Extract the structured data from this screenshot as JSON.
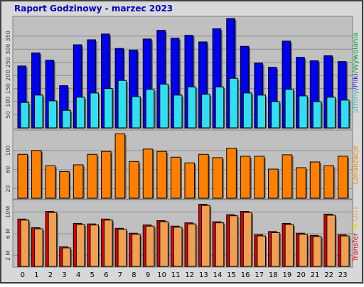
{
  "chart_data": [
    {
      "type": "bar",
      "title": "Raport Godzinowy -  marzec 2023",
      "series": [
        {
          "name": "Pliki",
          "color": "#0000f0",
          "values": [
            236,
            286,
            258,
            161,
            317,
            336,
            358,
            303,
            297,
            339,
            372,
            342,
            353,
            328,
            378,
            417,
            311,
            247,
            231,
            331,
            269,
            256,
            275,
            253
          ]
        },
        {
          "name": "Strony",
          "color": "#30e0f0",
          "values": [
            97,
            125,
            103,
            67,
            117,
            133,
            150,
            181,
            119,
            147,
            167,
            125,
            156,
            128,
            156,
            189,
            133,
            125,
            100,
            147,
            122,
            100,
            117,
            106
          ]
        }
      ],
      "side_label": [
        {
          "text": "Strony",
          "color": "#30c0d0"
        },
        {
          "text": "/Pliki",
          "color": "#2020d0"
        },
        {
          "text": "/Wywolania",
          "color": "#00a040"
        }
      ],
      "ylim": [
        0,
        420
      ],
      "yticks": [
        50,
        100,
        150,
        200,
        250,
        300,
        350
      ],
      "grid": true
    },
    {
      "type": "bar",
      "series": [
        {
          "name": "Lokalizacje",
          "color": "#ff8000",
          "values": [
            92,
            100,
            68,
            56,
            70,
            92,
            98,
            135,
            77,
            103,
            98,
            86,
            74,
            92,
            85,
            105,
            88,
            88,
            61,
            91,
            64,
            76,
            68,
            88
          ]
        }
      ],
      "side_label": [
        {
          "text": "Lokalizacje",
          "color": "#ff8000"
        }
      ],
      "ylim": [
        0,
        140
      ],
      "yticks": [
        20,
        60,
        100
      ],
      "grid": true
    },
    {
      "type": "bar",
      "categories": [
        "0",
        "1",
        "2",
        "3",
        "4",
        "5",
        "6",
        "7",
        "8",
        "9",
        "10",
        "11",
        "12",
        "13",
        "14",
        "15",
        "16",
        "17",
        "18",
        "19",
        "20",
        "21",
        "22",
        "23"
      ],
      "series": [
        {
          "name": "Transfer",
          "color": "#e00000",
          "values": [
            8.7,
            7.1,
            10.1,
            3.6,
            7.9,
            7.8,
            8.7,
            7.0,
            6.1,
            7.6,
            8.4,
            7.4,
            8.0,
            11.4,
            8.2,
            9.5,
            10.1,
            5.8,
            6.4,
            7.9,
            6.1,
            5.7,
            9.6,
            5.8
          ]
        },
        {
          "name": "OUT",
          "color": "#f0a050",
          "values": [
            8.5,
            6.9,
            9.9,
            3.4,
            7.7,
            7.6,
            8.5,
            6.8,
            5.9,
            7.4,
            8.2,
            7.2,
            7.8,
            11.2,
            8.0,
            9.3,
            9.9,
            5.6,
            6.2,
            7.7,
            5.9,
            5.5,
            9.4,
            5.6
          ]
        }
      ],
      "side_label": [
        {
          "text": "Transfer",
          "color": "#e00000"
        },
        {
          "text": " IN",
          "color": "#e0e000"
        },
        {
          "text": " OUT",
          "color": "#f0a050"
        }
      ],
      "ylim": [
        0,
        12
      ],
      "yticks": [
        {
          "value": 2,
          "label": "2 M"
        },
        {
          "value": 6,
          "label": "6 M"
        },
        {
          "value": 10,
          "label": "10M"
        }
      ],
      "grid": true
    }
  ]
}
